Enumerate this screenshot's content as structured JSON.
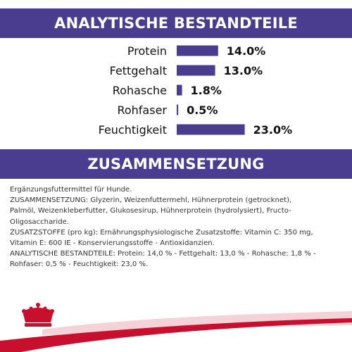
{
  "colors": {
    "banner": "#4a3d8f",
    "bar": "#4a3d8f",
    "logo": "#c8102e",
    "footer_swoosh": "#c8102e",
    "footer_swoosh_light": "#f3d2d8"
  },
  "headers": {
    "analytics": "ANALYTISCHE BESTANDTEILE",
    "composition": "ZUSAMMENSETZUNG"
  },
  "chart_data": {
    "type": "bar",
    "orientation": "horizontal",
    "categories": [
      "Protein",
      "Fettgehalt",
      "Rohasche",
      "Rohfaser",
      "Feuchtigkeit"
    ],
    "values": [
      14.0,
      13.0,
      1.8,
      0.5,
      23.0
    ],
    "value_labels": [
      "14.0%",
      "13.0%",
      "1.8%",
      "0.5%",
      "23.0%"
    ],
    "unit": "%",
    "title": "ANALYTISCHE BESTANDTEILE",
    "xlabel": "",
    "ylabel": "",
    "grid": false
  },
  "composition_lines": [
    "Ergänzungsfuttermittel für Hunde.",
    "ZUSAMMENSETZUNG: Glyzerin, Weizenfuttermehl, Hühnerprotein (getrocknet),",
    "Palmöl, Weizenkleberfutter, Glukosesirup, Hühnerprotein (hydrolysiert), Fructo-",
    "Oligosaccharide.",
    "ZUSATZSTOFFE (pro kg): Ernährungsphysiologische Zusatzstoffe: Vitamin C: 350 mg,",
    "Vitamin E: 600 IE - Konservierungsstoffe - Antioxidanzien.",
    "ANALYTISCHE BESTANDTEILE: Protein: 14,0 % - Fettgehalt: 13,0 % - Rohasche: 1,8 % -",
    "Rohfaser: 0,5 % - Feuchtigkeit: 23,0 %."
  ],
  "logo_icon": "crown-icon"
}
